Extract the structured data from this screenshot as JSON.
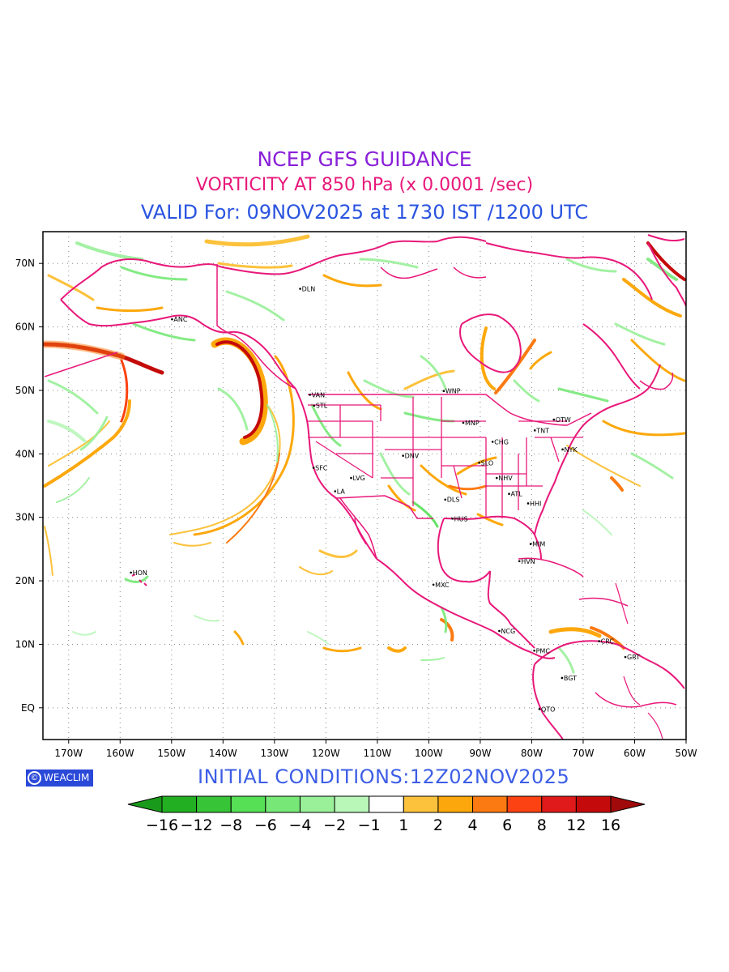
{
  "header": {
    "title": "NCEP GFS GUIDANCE",
    "subtitle": "VORTICITY AT 850 hPa (x 0.0001 /sec)",
    "valid": "VALID For: 09NOV2025 at 1730 IST /1200 UTC"
  },
  "footer": {
    "logo_text": "WEACLIM",
    "initial_conditions": "INITIAL  CONDITIONS:12Z02NOV2025"
  },
  "map": {
    "projection": "lat-lon",
    "extent": {
      "lon": [
        -175,
        -50
      ],
      "lat": [
        -5,
        75
      ]
    },
    "lat_ticks": [
      "70N",
      "60N",
      "50N",
      "40N",
      "30N",
      "20N",
      "10N",
      "EQ"
    ],
    "lon_ticks": [
      "170W",
      "160W",
      "150W",
      "140W",
      "130W",
      "120W",
      "110W",
      "100W",
      "90W",
      "80W",
      "70W",
      "60W",
      "50W"
    ],
    "gridlines": "dotted",
    "coastline_color": "#e8187a",
    "cities": [
      {
        "label": "ANC",
        "lon": -149.9,
        "lat": 61.2
      },
      {
        "label": "DLN",
        "lon": -125.0,
        "lat": 66.0
      },
      {
        "label": "VAN",
        "lon": -123.1,
        "lat": 49.3
      },
      {
        "label": "STL",
        "lon": -122.3,
        "lat": 47.6
      },
      {
        "label": "WNP",
        "lon": -97.1,
        "lat": 49.9
      },
      {
        "label": "MNP",
        "lon": -93.3,
        "lat": 44.9
      },
      {
        "label": "OTW",
        "lon": -75.7,
        "lat": 45.4
      },
      {
        "label": "TNT",
        "lon": -79.4,
        "lat": 43.7
      },
      {
        "label": "CHG",
        "lon": -87.6,
        "lat": 41.9
      },
      {
        "label": "NYK",
        "lon": -74.0,
        "lat": 40.7
      },
      {
        "label": "DNV",
        "lon": -105.0,
        "lat": 39.7
      },
      {
        "label": "SLO",
        "lon": -90.2,
        "lat": 38.6
      },
      {
        "label": "SFC",
        "lon": -122.4,
        "lat": 37.8
      },
      {
        "label": "LVG",
        "lon": -115.1,
        "lat": 36.2
      },
      {
        "label": "NHV",
        "lon": -86.8,
        "lat": 36.2
      },
      {
        "label": "LA",
        "lon": -118.2,
        "lat": 34.1
      },
      {
        "label": "DLS",
        "lon": -96.8,
        "lat": 32.8
      },
      {
        "label": "ATL",
        "lon": -84.4,
        "lat": 33.7
      },
      {
        "label": "HHI",
        "lon": -80.7,
        "lat": 32.2
      },
      {
        "label": "HUS",
        "lon": -95.4,
        "lat": 29.8
      },
      {
        "label": "MIM",
        "lon": -80.2,
        "lat": 25.8
      },
      {
        "label": "HVN",
        "lon": -82.4,
        "lat": 23.1
      },
      {
        "label": "HON",
        "lon": -157.9,
        "lat": 21.3
      },
      {
        "label": "MXC",
        "lon": -99.1,
        "lat": 19.4
      },
      {
        "label": "NCG",
        "lon": -86.3,
        "lat": 12.1
      },
      {
        "label": "PMC",
        "lon": -79.5,
        "lat": 9.0
      },
      {
        "label": "CRC",
        "lon": -66.9,
        "lat": 10.5
      },
      {
        "label": "GRT",
        "lon": -61.8,
        "lat": 8.0
      },
      {
        "label": "BGT",
        "lon": -74.1,
        "lat": 4.7
      },
      {
        "label": "QTO",
        "lon": -78.5,
        "lat": -0.2
      }
    ]
  },
  "colorbar": {
    "labels": [
      "−16",
      "−12",
      "−8",
      "−6",
      "−4",
      "−2",
      "−1",
      "1",
      "2",
      "4",
      "6",
      "8",
      "12",
      "16"
    ],
    "colors": [
      "#1a9a1a",
      "#22b022",
      "#37c437",
      "#55e055",
      "#77e877",
      "#99f099",
      "#b9f7b9",
      "#ffffff",
      "#fcc23c",
      "#fca80c",
      "#fc7a12",
      "#fc4212",
      "#e01a1a",
      "#c40a0a",
      "#a00a0a"
    ]
  }
}
